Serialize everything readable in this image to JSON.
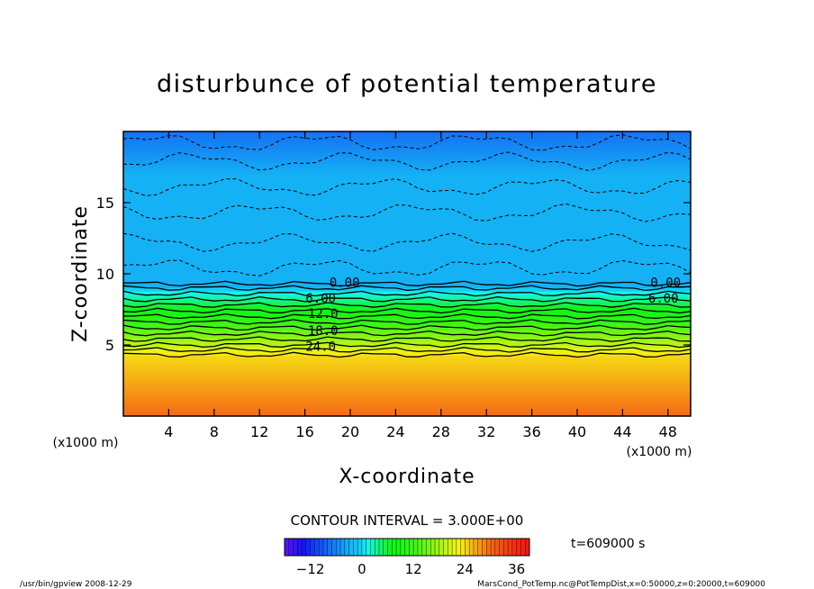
{
  "chart_data": {
    "type": "heatmap",
    "title": "disturbunce of potential temperature",
    "xlabel": "X-coordinate",
    "ylabel": "Z-coordinate",
    "x_unit_left": "(x1000 m)",
    "x_unit_right": "(x1000 m)",
    "xlim": [
      0,
      50
    ],
    "ylim": [
      0,
      20
    ],
    "x_ticks": [
      4,
      8,
      12,
      16,
      20,
      24,
      28,
      32,
      36,
      40,
      44,
      48
    ],
    "y_ticks": [
      5,
      10,
      15
    ],
    "contour_labels": [
      {
        "text": "0.00",
        "x": 19.5,
        "z": 9.4
      },
      {
        "text": "6.00",
        "x": 17.4,
        "z": 8.3
      },
      {
        "text": "12.0",
        "x": 17.6,
        "z": 7.2
      },
      {
        "text": "18.0",
        "x": 17.6,
        "z": 6.0
      },
      {
        "text": "24.0",
        "x": 17.4,
        "z": 4.9
      },
      {
        "text": "0.00",
        "x": 47.8,
        "z": 9.4
      },
      {
        "text": "6.00",
        "x": 47.6,
        "z": 8.3
      }
    ],
    "stratification": [
      {
        "z": 9.0,
        "value": 0
      },
      {
        "z": 7.8,
        "value": 6
      },
      {
        "z": 6.6,
        "value": 12
      },
      {
        "z": 5.4,
        "value": 18
      },
      {
        "z": 4.3,
        "value": 24
      },
      {
        "z": 0.0,
        "value": 30
      }
    ],
    "colorbar": {
      "ticks": [
        -12,
        0,
        12,
        24,
        36
      ],
      "range": [
        -18,
        39
      ],
      "contour_interval": "CONTOUR INTERVAL = 3.000E+00"
    },
    "time_label": "t=609000 s",
    "footer_left": "/usr/bin/gpview  2008-12-29",
    "footer_right": "MarsCond_PotTemp.nc@PotTempDist,x=0:50000,z=0:20000,t=609000"
  }
}
